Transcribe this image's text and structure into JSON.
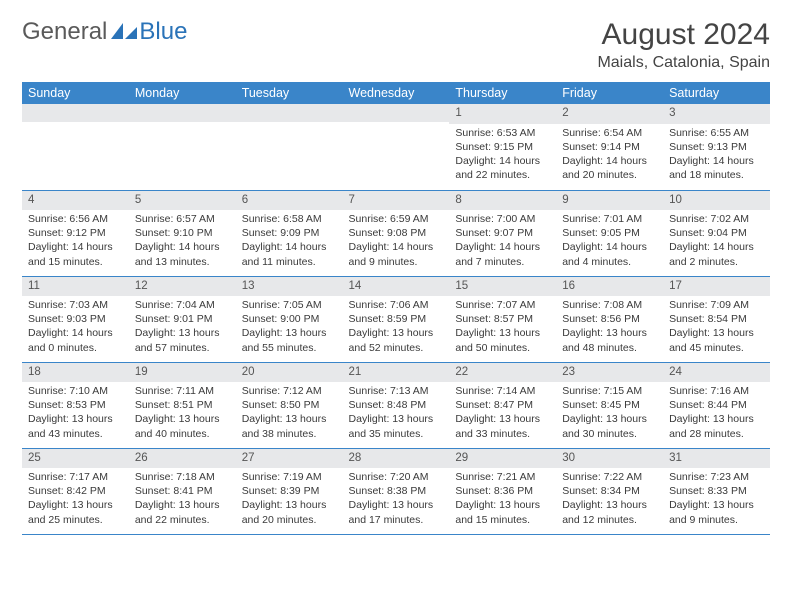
{
  "brand": {
    "part1": "General",
    "part2": "Blue"
  },
  "title": {
    "month": "August 2024",
    "location": "Maials, Catalonia, Spain"
  },
  "colors": {
    "header_bg": "#3a85c9",
    "header_fg": "#ffffff",
    "daynum_bg": "#e7e8ea",
    "rule": "#3a85c9",
    "brand_blue": "#2a73b8",
    "text": "#3a3a3a"
  },
  "day_labels": [
    "Sunday",
    "Monday",
    "Tuesday",
    "Wednesday",
    "Thursday",
    "Friday",
    "Saturday"
  ],
  "weeks": [
    [
      null,
      null,
      null,
      null,
      {
        "n": "1",
        "sr": "Sunrise: 6:53 AM",
        "ss": "Sunset: 9:15 PM",
        "d1": "Daylight: 14 hours",
        "d2": "and 22 minutes."
      },
      {
        "n": "2",
        "sr": "Sunrise: 6:54 AM",
        "ss": "Sunset: 9:14 PM",
        "d1": "Daylight: 14 hours",
        "d2": "and 20 minutes."
      },
      {
        "n": "3",
        "sr": "Sunrise: 6:55 AM",
        "ss": "Sunset: 9:13 PM",
        "d1": "Daylight: 14 hours",
        "d2": "and 18 minutes."
      }
    ],
    [
      {
        "n": "4",
        "sr": "Sunrise: 6:56 AM",
        "ss": "Sunset: 9:12 PM",
        "d1": "Daylight: 14 hours",
        "d2": "and 15 minutes."
      },
      {
        "n": "5",
        "sr": "Sunrise: 6:57 AM",
        "ss": "Sunset: 9:10 PM",
        "d1": "Daylight: 14 hours",
        "d2": "and 13 minutes."
      },
      {
        "n": "6",
        "sr": "Sunrise: 6:58 AM",
        "ss": "Sunset: 9:09 PM",
        "d1": "Daylight: 14 hours",
        "d2": "and 11 minutes."
      },
      {
        "n": "7",
        "sr": "Sunrise: 6:59 AM",
        "ss": "Sunset: 9:08 PM",
        "d1": "Daylight: 14 hours",
        "d2": "and 9 minutes."
      },
      {
        "n": "8",
        "sr": "Sunrise: 7:00 AM",
        "ss": "Sunset: 9:07 PM",
        "d1": "Daylight: 14 hours",
        "d2": "and 7 minutes."
      },
      {
        "n": "9",
        "sr": "Sunrise: 7:01 AM",
        "ss": "Sunset: 9:05 PM",
        "d1": "Daylight: 14 hours",
        "d2": "and 4 minutes."
      },
      {
        "n": "10",
        "sr": "Sunrise: 7:02 AM",
        "ss": "Sunset: 9:04 PM",
        "d1": "Daylight: 14 hours",
        "d2": "and 2 minutes."
      }
    ],
    [
      {
        "n": "11",
        "sr": "Sunrise: 7:03 AM",
        "ss": "Sunset: 9:03 PM",
        "d1": "Daylight: 14 hours",
        "d2": "and 0 minutes."
      },
      {
        "n": "12",
        "sr": "Sunrise: 7:04 AM",
        "ss": "Sunset: 9:01 PM",
        "d1": "Daylight: 13 hours",
        "d2": "and 57 minutes."
      },
      {
        "n": "13",
        "sr": "Sunrise: 7:05 AM",
        "ss": "Sunset: 9:00 PM",
        "d1": "Daylight: 13 hours",
        "d2": "and 55 minutes."
      },
      {
        "n": "14",
        "sr": "Sunrise: 7:06 AM",
        "ss": "Sunset: 8:59 PM",
        "d1": "Daylight: 13 hours",
        "d2": "and 52 minutes."
      },
      {
        "n": "15",
        "sr": "Sunrise: 7:07 AM",
        "ss": "Sunset: 8:57 PM",
        "d1": "Daylight: 13 hours",
        "d2": "and 50 minutes."
      },
      {
        "n": "16",
        "sr": "Sunrise: 7:08 AM",
        "ss": "Sunset: 8:56 PM",
        "d1": "Daylight: 13 hours",
        "d2": "and 48 minutes."
      },
      {
        "n": "17",
        "sr": "Sunrise: 7:09 AM",
        "ss": "Sunset: 8:54 PM",
        "d1": "Daylight: 13 hours",
        "d2": "and 45 minutes."
      }
    ],
    [
      {
        "n": "18",
        "sr": "Sunrise: 7:10 AM",
        "ss": "Sunset: 8:53 PM",
        "d1": "Daylight: 13 hours",
        "d2": "and 43 minutes."
      },
      {
        "n": "19",
        "sr": "Sunrise: 7:11 AM",
        "ss": "Sunset: 8:51 PM",
        "d1": "Daylight: 13 hours",
        "d2": "and 40 minutes."
      },
      {
        "n": "20",
        "sr": "Sunrise: 7:12 AM",
        "ss": "Sunset: 8:50 PM",
        "d1": "Daylight: 13 hours",
        "d2": "and 38 minutes."
      },
      {
        "n": "21",
        "sr": "Sunrise: 7:13 AM",
        "ss": "Sunset: 8:48 PM",
        "d1": "Daylight: 13 hours",
        "d2": "and 35 minutes."
      },
      {
        "n": "22",
        "sr": "Sunrise: 7:14 AM",
        "ss": "Sunset: 8:47 PM",
        "d1": "Daylight: 13 hours",
        "d2": "and 33 minutes."
      },
      {
        "n": "23",
        "sr": "Sunrise: 7:15 AM",
        "ss": "Sunset: 8:45 PM",
        "d1": "Daylight: 13 hours",
        "d2": "and 30 minutes."
      },
      {
        "n": "24",
        "sr": "Sunrise: 7:16 AM",
        "ss": "Sunset: 8:44 PM",
        "d1": "Daylight: 13 hours",
        "d2": "and 28 minutes."
      }
    ],
    [
      {
        "n": "25",
        "sr": "Sunrise: 7:17 AM",
        "ss": "Sunset: 8:42 PM",
        "d1": "Daylight: 13 hours",
        "d2": "and 25 minutes."
      },
      {
        "n": "26",
        "sr": "Sunrise: 7:18 AM",
        "ss": "Sunset: 8:41 PM",
        "d1": "Daylight: 13 hours",
        "d2": "and 22 minutes."
      },
      {
        "n": "27",
        "sr": "Sunrise: 7:19 AM",
        "ss": "Sunset: 8:39 PM",
        "d1": "Daylight: 13 hours",
        "d2": "and 20 minutes."
      },
      {
        "n": "28",
        "sr": "Sunrise: 7:20 AM",
        "ss": "Sunset: 8:38 PM",
        "d1": "Daylight: 13 hours",
        "d2": "and 17 minutes."
      },
      {
        "n": "29",
        "sr": "Sunrise: 7:21 AM",
        "ss": "Sunset: 8:36 PM",
        "d1": "Daylight: 13 hours",
        "d2": "and 15 minutes."
      },
      {
        "n": "30",
        "sr": "Sunrise: 7:22 AM",
        "ss": "Sunset: 8:34 PM",
        "d1": "Daylight: 13 hours",
        "d2": "and 12 minutes."
      },
      {
        "n": "31",
        "sr": "Sunrise: 7:23 AM",
        "ss": "Sunset: 8:33 PM",
        "d1": "Daylight: 13 hours",
        "d2": "and 9 minutes."
      }
    ]
  ]
}
